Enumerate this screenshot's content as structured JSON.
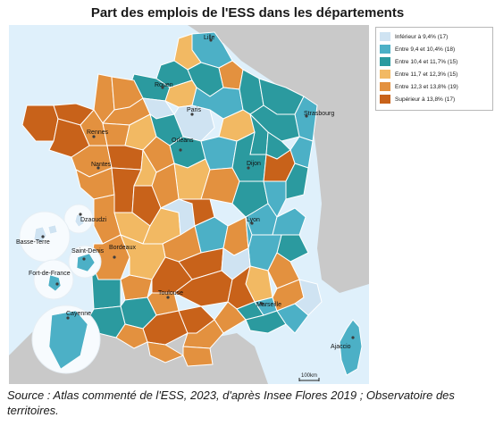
{
  "title": "Part des emplois de l'ESS dans les départements",
  "legend": {
    "items": [
      {
        "label": "Inférieur à 9,4% (17)",
        "color": "#cfe3f2"
      },
      {
        "label": "Entre 9,4 et 10,4% (18)",
        "color": "#4cb0c6"
      },
      {
        "label": "Entre 10,4 et 11,7% (15)",
        "color": "#2b9a9f"
      },
      {
        "label": "Entre 11,7 et 12,3% (15)",
        "color": "#f2b963"
      },
      {
        "label": "Entre 12,3 et 13,8% (19)",
        "color": "#e3913f"
      },
      {
        "label": "Supérieur à 13,8% (17)",
        "color": "#c8621a"
      }
    ]
  },
  "cities": [
    "Lille",
    "Rouen",
    "Paris",
    "Strasbourg",
    "Rennes",
    "Orléans",
    "Nantes",
    "Dijon",
    "Lyon",
    "Bordeaux",
    "Toulouse",
    "Marseille",
    "Ajaccio",
    "Cayenne",
    "Basse-Terre",
    "Saint-Denis",
    "Fort-de-France",
    "Dzaoudzi"
  ],
  "scale": {
    "label": "100km"
  },
  "source": "Source : Atlas commenté de l'ESS, 2023, d'après Insee Flores 2019 ; Observatoire des territoires.",
  "colors": {
    "sea": "#dff0fb",
    "land_outside": "#c9c9c9",
    "border": "#ffffff"
  }
}
